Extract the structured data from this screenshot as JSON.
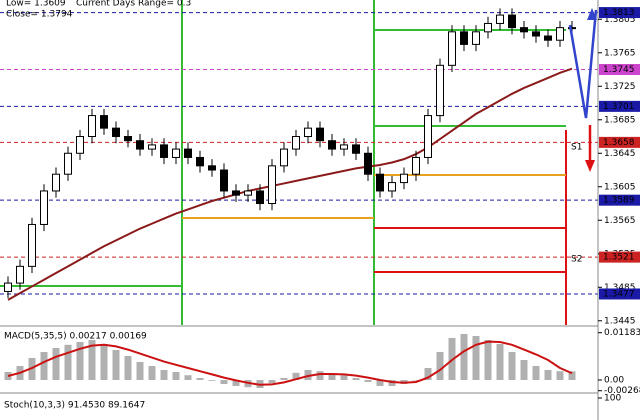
{
  "chart_data": {
    "type": "candlestick",
    "header": [
      "Low= 1.3609",
      "Current Days Range= 0.3",
      "Close= 1.3794"
    ],
    "ylim": [
      1.3439,
      1.3828
    ],
    "yticks": [
      1.3805,
      1.3765,
      1.3725,
      1.3685,
      1.3645,
      1.3605,
      1.3565,
      1.3525,
      1.3485,
      1.3445
    ],
    "open": [
      1.348,
      1.349,
      1.351,
      1.356,
      1.36,
      1.362,
      1.3645,
      1.3665,
      1.369,
      1.3675,
      1.3665,
      1.366,
      1.365,
      1.3655,
      1.364,
      1.365,
      1.364,
      1.363,
      1.3625,
      1.36,
      1.3595,
      1.36,
      1.3585,
      1.363,
      1.365,
      1.3665,
      1.3675,
      1.366,
      1.365,
      1.3655,
      1.3645,
      1.362,
      1.36,
      1.361,
      1.362,
      1.364,
      1.369,
      1.375,
      1.379,
      1.3775,
      1.379,
      1.38,
      1.381,
      1.3795,
      1.379,
      1.3785,
      1.378,
      1.3795
    ],
    "high": [
      1.3498,
      1.3518,
      1.3568,
      1.3608,
      1.3628,
      1.3653,
      1.3673,
      1.3698,
      1.3698,
      1.3683,
      1.3673,
      1.3668,
      1.3663,
      1.3663,
      1.3658,
      1.3658,
      1.3648,
      1.3638,
      1.3633,
      1.3608,
      1.3608,
      1.3608,
      1.3638,
      1.3658,
      1.3673,
      1.3683,
      1.3683,
      1.3668,
      1.3663,
      1.3663,
      1.3653,
      1.3628,
      1.3618,
      1.3628,
      1.3648,
      1.3698,
      1.3758,
      1.3798,
      1.3798,
      1.3798,
      1.3808,
      1.3818,
      1.3818,
      1.3803,
      1.3798,
      1.3793,
      1.3803,
      1.3803
    ],
    "low": [
      1.3472,
      1.3482,
      1.3502,
      1.3552,
      1.3592,
      1.3612,
      1.3637,
      1.3657,
      1.3667,
      1.3657,
      1.3652,
      1.3642,
      1.3642,
      1.3632,
      1.3632,
      1.3632,
      1.3622,
      1.3617,
      1.3592,
      1.3587,
      1.3587,
      1.3577,
      1.3577,
      1.3622,
      1.3642,
      1.3657,
      1.3652,
      1.3642,
      1.3642,
      1.3637,
      1.3612,
      1.3592,
      1.3592,
      1.3602,
      1.3612,
      1.3632,
      1.3682,
      1.3742,
      1.3767,
      1.3767,
      1.3782,
      1.3792,
      1.3787,
      1.3782,
      1.3777,
      1.3772,
      1.3772,
      1.3786
    ],
    "close": [
      1.349,
      1.351,
      1.356,
      1.36,
      1.362,
      1.3645,
      1.3665,
      1.369,
      1.3675,
      1.3665,
      1.366,
      1.365,
      1.3655,
      1.364,
      1.365,
      1.364,
      1.363,
      1.3625,
      1.36,
      1.3595,
      1.36,
      1.3585,
      1.363,
      1.365,
      1.3665,
      1.3675,
      1.366,
      1.365,
      1.3655,
      1.3645,
      1.362,
      1.36,
      1.361,
      1.362,
      1.364,
      1.369,
      1.375,
      1.379,
      1.3775,
      1.379,
      1.38,
      1.381,
      1.3795,
      1.379,
      1.3785,
      1.378,
      1.3795,
      1.3794
    ],
    "ma": [
      1.347,
      1.3478,
      1.3486,
      1.3494,
      1.3502,
      1.351,
      1.3518,
      1.3526,
      1.3534,
      1.3541,
      1.3548,
      1.3555,
      1.3561,
      1.3567,
      1.3573,
      1.3578,
      1.3583,
      1.3588,
      1.3592,
      1.3596,
      1.36,
      1.3603,
      1.3606,
      1.3609,
      1.3612,
      1.3615,
      1.3618,
      1.3621,
      1.3624,
      1.3627,
      1.3629,
      1.3631,
      1.3634,
      1.3638,
      1.3644,
      1.3652,
      1.3662,
      1.3672,
      1.3682,
      1.3692,
      1.37,
      1.3708,
      1.3716,
      1.3723,
      1.3729,
      1.3735,
      1.3741,
      1.3746
    ],
    "ma_color": "#8b1a1a",
    "levels": [
      {
        "value": 1.3813,
        "color": "#1a1aa6"
      },
      {
        "value": 1.3745,
        "color": "#cc44cc"
      },
      {
        "value": 1.3701,
        "color": "#1a1aa6"
      },
      {
        "value": 1.3658,
        "color": "#cc2222"
      },
      {
        "value": 1.3589,
        "color": "#1a1aa6"
      },
      {
        "value": 1.3521,
        "color": "#cc2222"
      },
      {
        "value": 1.3477,
        "color": "#1a1aa6"
      }
    ],
    "pivot_labels": [
      "S1",
      "S2"
    ],
    "macd": {
      "title": "MACD(5,35,5) 0.00217 0.00169",
      "ylim": [
        -0.003,
        0.0125
      ],
      "yticks": [
        0.01183,
        {
          "value": 0,
          "label": "0.00"
        },
        -0.00268
      ],
      "histogram": [
        0.002,
        0.0035,
        0.0055,
        0.007,
        0.008,
        0.0088,
        0.0095,
        0.01,
        0.009,
        0.0075,
        0.006,
        0.0045,
        0.0035,
        0.0025,
        0.002,
        0.0012,
        0.0005,
        -0.0002,
        -0.001,
        -0.0015,
        -0.0018,
        -0.002,
        -0.0008,
        0.0005,
        0.0018,
        0.0025,
        0.0022,
        0.0015,
        0.0012,
        0.0005,
        -0.0005,
        -0.0015,
        -0.0015,
        -0.001,
        0.0,
        0.003,
        0.007,
        0.0105,
        0.0115,
        0.011,
        0.01,
        0.009,
        0.007,
        0.005,
        0.0035,
        0.0025,
        0.0022,
        0.00217
      ],
      "signal": [
        0.001,
        0.0018,
        0.003,
        0.0045,
        0.0058,
        0.0068,
        0.0078,
        0.0086,
        0.0088,
        0.0084,
        0.0076,
        0.0066,
        0.0056,
        0.0046,
        0.0038,
        0.003,
        0.0022,
        0.0014,
        0.0006,
        -0.0001,
        -0.0007,
        -0.0012,
        -0.0011,
        -0.0006,
        0.0002,
        0.001,
        0.0015,
        0.0015,
        0.0014,
        0.0011,
        0.0006,
        0.0,
        -0.0005,
        -0.0007,
        -0.0005,
        0.0006,
        0.0025,
        0.005,
        0.0072,
        0.0088,
        0.0096,
        0.0095,
        0.0088,
        0.0076,
        0.0064,
        0.005,
        0.003,
        0.00169
      ],
      "hist_color": "#b0b0b0",
      "signal_color": "#cc1111"
    },
    "stoch": {
      "title": "Stoch(10,3,3) 91.4530 89.1647",
      "ylim": [
        0,
        100
      ],
      "yticks": [
        100
      ]
    }
  }
}
